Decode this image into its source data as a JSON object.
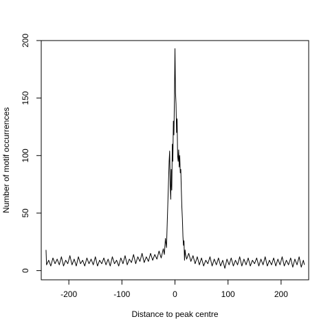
{
  "chart_data": {
    "type": "line",
    "title": "",
    "xlabel": "Distance to peak centre",
    "ylabel": "Number of motif occurrences",
    "xlim": [
      -252,
      252
    ],
    "ylim": [
      -8,
      200
    ],
    "xticks": [
      -200,
      -100,
      0,
      100,
      200
    ],
    "xtick_labels": [
      "-200",
      "-100",
      "0",
      "100",
      "200"
    ],
    "yticks": [
      0,
      50,
      100,
      150,
      200
    ],
    "ytick_labels": [
      "0",
      "50",
      "100",
      "150",
      "200"
    ],
    "grid": false,
    "series": [
      {
        "name": "",
        "color": "#000000",
        "points": [
          [
            -243,
            18
          ],
          [
            -242,
            5
          ],
          [
            -238,
            9
          ],
          [
            -234,
            4
          ],
          [
            -230,
            11
          ],
          [
            -226,
            6
          ],
          [
            -222,
            10
          ],
          [
            -218,
            5
          ],
          [
            -214,
            12
          ],
          [
            -210,
            4
          ],
          [
            -206,
            9
          ],
          [
            -202,
            6
          ],
          [
            -198,
            13
          ],
          [
            -194,
            5
          ],
          [
            -190,
            10
          ],
          [
            -186,
            4
          ],
          [
            -182,
            12
          ],
          [
            -178,
            6
          ],
          [
            -174,
            9
          ],
          [
            -170,
            4
          ],
          [
            -166,
            11
          ],
          [
            -162,
            6
          ],
          [
            -158,
            10
          ],
          [
            -154,
            5
          ],
          [
            -150,
            12
          ],
          [
            -146,
            4
          ],
          [
            -142,
            9
          ],
          [
            -138,
            6
          ],
          [
            -134,
            11
          ],
          [
            -130,
            5
          ],
          [
            -126,
            10
          ],
          [
            -122,
            4
          ],
          [
            -118,
            12
          ],
          [
            -114,
            6
          ],
          [
            -110,
            9
          ],
          [
            -106,
            4
          ],
          [
            -102,
            11
          ],
          [
            -98,
            6
          ],
          [
            -94,
            13
          ],
          [
            -90,
            5
          ],
          [
            -86,
            10
          ],
          [
            -82,
            7
          ],
          [
            -78,
            14
          ],
          [
            -74,
            6
          ],
          [
            -70,
            12
          ],
          [
            -66,
            8
          ],
          [
            -62,
            15
          ],
          [
            -58,
            7
          ],
          [
            -54,
            12
          ],
          [
            -50,
            8
          ],
          [
            -46,
            15
          ],
          [
            -42,
            9
          ],
          [
            -38,
            14
          ],
          [
            -34,
            10
          ],
          [
            -30,
            17
          ],
          [
            -26,
            11
          ],
          [
            -22,
            19
          ],
          [
            -20,
            14
          ],
          [
            -18,
            28
          ],
          [
            -16,
            20
          ],
          [
            -15,
            35
          ],
          [
            -14,
            50
          ],
          [
            -13,
            65
          ],
          [
            -12,
            80
          ],
          [
            -11,
            95
          ],
          [
            -10,
            104
          ],
          [
            -9,
            75
          ],
          [
            -8,
            62
          ],
          [
            -7,
            88
          ],
          [
            -6,
            70
          ],
          [
            -5,
            110
          ],
          [
            -4,
            95
          ],
          [
            -3,
            130
          ],
          [
            -2,
            118
          ],
          [
            -1,
            150
          ],
          [
            0,
            193
          ],
          [
            1,
            155
          ],
          [
            2,
            145
          ],
          [
            3,
            120
          ],
          [
            4,
            132
          ],
          [
            5,
            100
          ],
          [
            6,
            95
          ],
          [
            7,
            105
          ],
          [
            8,
            90
          ],
          [
            9,
            100
          ],
          [
            10,
            85
          ],
          [
            11,
            88
          ],
          [
            12,
            70
          ],
          [
            13,
            55
          ],
          [
            14,
            45
          ],
          [
            15,
            30
          ],
          [
            16,
            22
          ],
          [
            17,
            26
          ],
          [
            18,
            9
          ],
          [
            19,
            18
          ],
          [
            20,
            14
          ],
          [
            22,
            10
          ],
          [
            26,
            15
          ],
          [
            30,
            8
          ],
          [
            34,
            13
          ],
          [
            38,
            6
          ],
          [
            42,
            12
          ],
          [
            46,
            5
          ],
          [
            50,
            11
          ],
          [
            54,
            4
          ],
          [
            58,
            9
          ],
          [
            62,
            6
          ],
          [
            66,
            12
          ],
          [
            70,
            4
          ],
          [
            74,
            10
          ],
          [
            78,
            5
          ],
          [
            82,
            11
          ],
          [
            86,
            4
          ],
          [
            90,
            9
          ],
          [
            94,
            2
          ],
          [
            98,
            10
          ],
          [
            102,
            5
          ],
          [
            106,
            11
          ],
          [
            110,
            4
          ],
          [
            114,
            9
          ],
          [
            118,
            5
          ],
          [
            122,
            12
          ],
          [
            126,
            4
          ],
          [
            130,
            10
          ],
          [
            134,
            5
          ],
          [
            138,
            11
          ],
          [
            142,
            4
          ],
          [
            146,
            9
          ],
          [
            150,
            6
          ],
          [
            154,
            11
          ],
          [
            158,
            4
          ],
          [
            162,
            10
          ],
          [
            166,
            5
          ],
          [
            170,
            12
          ],
          [
            174,
            4
          ],
          [
            178,
            9
          ],
          [
            182,
            5
          ],
          [
            186,
            11
          ],
          [
            190,
            4
          ],
          [
            194,
            10
          ],
          [
            198,
            5
          ],
          [
            202,
            12
          ],
          [
            206,
            4
          ],
          [
            210,
            9
          ],
          [
            214,
            5
          ],
          [
            218,
            11
          ],
          [
            222,
            3
          ],
          [
            226,
            10
          ],
          [
            230,
            5
          ],
          [
            234,
            12
          ],
          [
            238,
            3
          ],
          [
            242,
            9
          ],
          [
            244,
            5
          ]
        ]
      }
    ]
  }
}
